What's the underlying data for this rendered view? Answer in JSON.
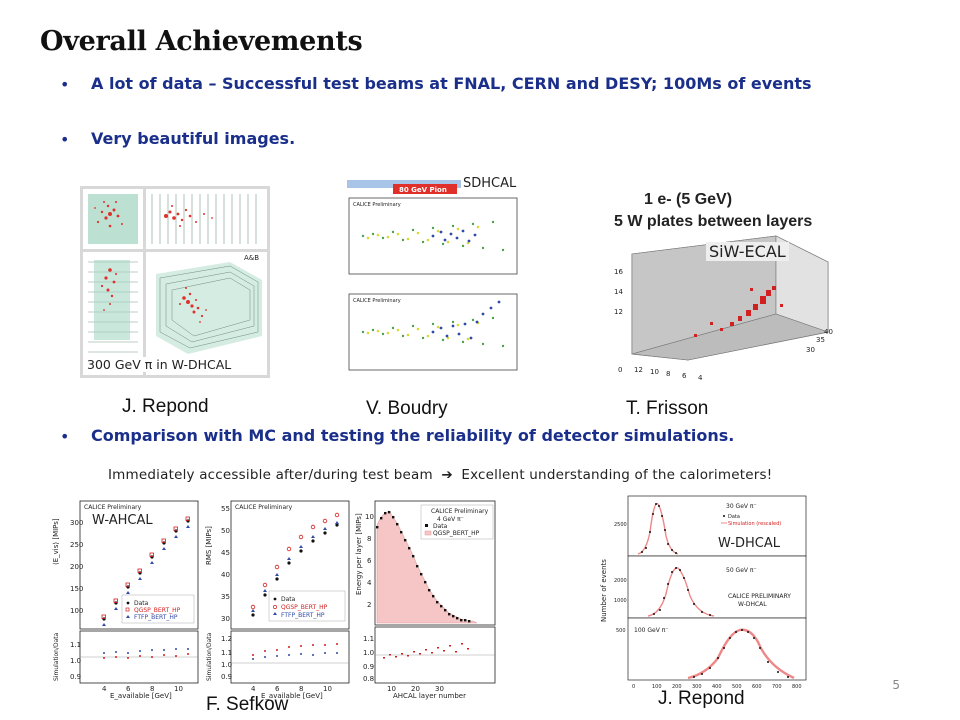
{
  "slide": {
    "title": "Overall Achievements",
    "page_number": "5"
  },
  "bullets": [
    "A lot of data – Successful test beams at FNAL, CERN and DESY; 100Ms of events",
    "Very beautiful images.",
    "Comparison with MC and testing the reliability of detector simulations."
  ],
  "note": {
    "before": "Immediately accessible after/during test beam",
    "arrow": "➔",
    "after": "Excellent understanding of the calorimeters!"
  },
  "images_row1": {
    "wdhcal_caption": "300 GeV π in W-DHCAL",
    "wdhcal_corner": "A&B",
    "sdhcal_label": "SDHCAL",
    "sdhcal_banner": "80 GeV Pion",
    "sdhcal_preliminary": "CALICE Preliminary",
    "ecal_title_1": "1 e- (5 GeV)",
    "ecal_title_2": "5 W plates  between layers",
    "ecal_label": "SiW-ECAL"
  },
  "authors_row1": [
    "J. Repond",
    "V. Boudry",
    "T. Frisson"
  ],
  "plots_row2": {
    "ahcal_label": "W-AHCAL",
    "preliminary": "CALICE Preliminary",
    "legend_data": "Data",
    "legend_qgsp": "QGSP_BERT_HP",
    "legend_ftfp": "FTFP_BERT_HP",
    "y1": "⟨E_vis⟩ [MIPs]",
    "y2": "RMS [MIPs]",
    "y3": "Energy per layer [MIPs]",
    "yratio": "Simulation/Data",
    "xlabel": "E_available [GeV]",
    "x3": "AHCAL layer number",
    "beam": "4 GeV π⁻",
    "dhcal_label": "W-DHCAL",
    "dhcal_y": "Number of events",
    "dhcal_e1": "30 GeV π⁻",
    "dhcal_e2": "50 GeV π⁻",
    "dhcal_e3": "100 GeV π⁻",
    "dhcal_prelim": "CALICE PRELIMINARY",
    "dhcal_det": "W-DHCAL",
    "dhcal_data": "Data",
    "dhcal_sim": "Simulation (rescaled)"
  },
  "authors_row2": [
    "F. Sefkow",
    "J. Repond"
  ],
  "colors": {
    "bullet_text": "#1a2f8a",
    "title": "#111111",
    "hit_red": "#e0302a"
  }
}
